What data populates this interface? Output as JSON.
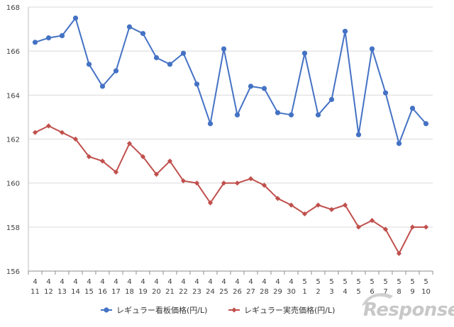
{
  "chart_data": {
    "type": "line",
    "ylim": [
      156,
      168
    ],
    "yticks": [
      156,
      158,
      160,
      162,
      164,
      166,
      168
    ],
    "grid": true,
    "legend_position": "bottom",
    "categories": [
      {
        "month": "4",
        "day": "11"
      },
      {
        "month": "4",
        "day": "12"
      },
      {
        "month": "4",
        "day": "13"
      },
      {
        "month": "4",
        "day": "14"
      },
      {
        "month": "4",
        "day": "15"
      },
      {
        "month": "4",
        "day": "16"
      },
      {
        "month": "4",
        "day": "17"
      },
      {
        "month": "4",
        "day": "18"
      },
      {
        "month": "4",
        "day": "19"
      },
      {
        "month": "4",
        "day": "20"
      },
      {
        "month": "4",
        "day": "21"
      },
      {
        "month": "4",
        "day": "22"
      },
      {
        "month": "4",
        "day": "23"
      },
      {
        "month": "4",
        "day": "24"
      },
      {
        "month": "4",
        "day": "25"
      },
      {
        "month": "4",
        "day": "26"
      },
      {
        "month": "4",
        "day": "27"
      },
      {
        "month": "4",
        "day": "28"
      },
      {
        "month": "4",
        "day": "29"
      },
      {
        "month": "4",
        "day": "30"
      },
      {
        "month": "5",
        "day": "1"
      },
      {
        "month": "5",
        "day": "2"
      },
      {
        "month": "5",
        "day": "3"
      },
      {
        "month": "5",
        "day": "4"
      },
      {
        "month": "5",
        "day": "5"
      },
      {
        "month": "5",
        "day": "6"
      },
      {
        "month": "5",
        "day": "7"
      },
      {
        "month": "5",
        "day": "8"
      },
      {
        "month": "5",
        "day": "9"
      },
      {
        "month": "5",
        "day": "10"
      }
    ],
    "series": [
      {
        "name": "レギュラー看板価格(円/L)",
        "color": "#4472c4",
        "marker": "circle",
        "values": [
          166.4,
          166.6,
          166.7,
          167.5,
          165.4,
          164.4,
          165.1,
          167.1,
          166.8,
          165.7,
          165.4,
          165.9,
          164.5,
          162.7,
          166.1,
          163.1,
          164.4,
          164.3,
          163.2,
          163.1,
          165.9,
          163.1,
          163.8,
          166.9,
          162.2,
          166.1,
          164.1,
          161.8,
          163.4,
          162.7
        ]
      },
      {
        "name": "レギュラー実売価格(円/L)",
        "color": "#c0504d",
        "marker": "diamond",
        "values": [
          162.3,
          162.6,
          162.3,
          162.0,
          161.2,
          161.0,
          160.5,
          161.8,
          161.2,
          160.4,
          161.0,
          160.1,
          160.0,
          159.1,
          160.0,
          160.0,
          160.2,
          159.9,
          159.3,
          159.0,
          158.6,
          159.0,
          158.8,
          159.0,
          158.0,
          158.3,
          157.9,
          156.8,
          158.0,
          158.0
        ]
      }
    ]
  },
  "watermark": {
    "text": "Response."
  }
}
